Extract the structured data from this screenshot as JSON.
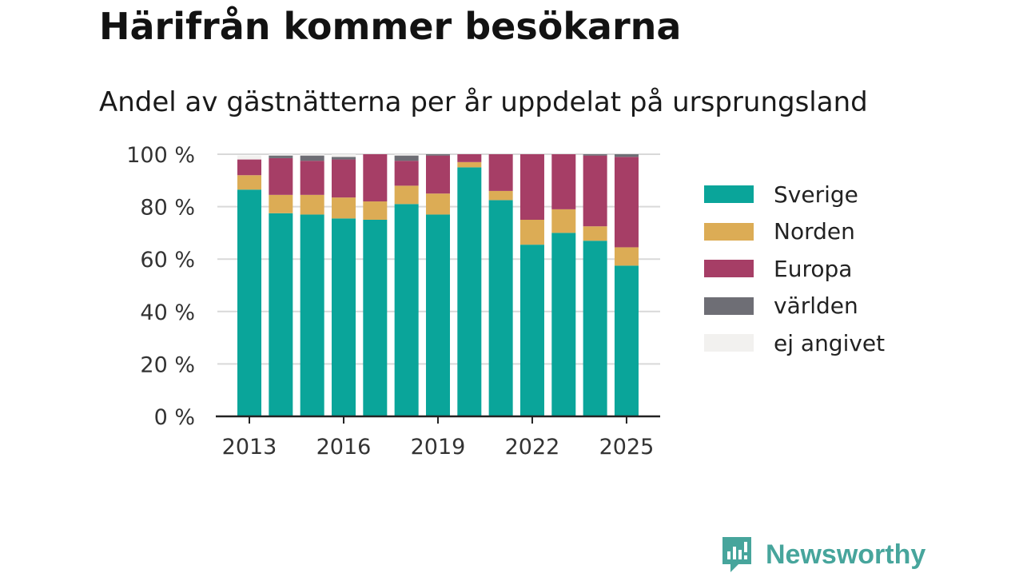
{
  "title": "Härifrån kommer besökarna",
  "subtitle": "Andel av gästnätterna per år uppdelat på ursprungsland",
  "brand": {
    "name": "Newsworthy",
    "logo_icon": "newsworthy-logo-icon"
  },
  "colors": {
    "Sverige": "#0aa59a",
    "Norden": "#dcac55",
    "Europa": "#a63e66",
    "världen": "#6e6e75",
    "ej angivet": "#f2f1ef",
    "grid": "#d9d9d9",
    "axis": "#222222"
  },
  "chart_data": {
    "type": "bar",
    "stacked": true,
    "title": "Härifrån kommer besökarna",
    "subtitle": "Andel av gästnätterna per år uppdelat på ursprungsland",
    "x": [
      2013,
      2014,
      2015,
      2016,
      2017,
      2018,
      2019,
      2020,
      2021,
      2022,
      2023,
      2024,
      2025
    ],
    "x_tick_labels": [
      "2013",
      "2016",
      "2019",
      "2022",
      "2025"
    ],
    "y_tick_labels": [
      "0 %",
      "20 %",
      "40 %",
      "60 %",
      "80 %",
      "100 %"
    ],
    "ylim": [
      0,
      100
    ],
    "grid": true,
    "legend_position": "right",
    "series": [
      {
        "name": "Sverige",
        "values": [
          86.5,
          77.5,
          77,
          75.5,
          75,
          81,
          77,
          95,
          82.5,
          65.5,
          70,
          67,
          57.5
        ]
      },
      {
        "name": "Norden",
        "values": [
          5.5,
          7,
          7.5,
          8,
          7,
          7,
          8,
          2,
          3.5,
          9.5,
          9,
          5.5,
          7
        ]
      },
      {
        "name": "Europa",
        "values": [
          6,
          14,
          13,
          14.5,
          18,
          9.5,
          14.5,
          3,
          14,
          25,
          21,
          27,
          34.5
        ]
      },
      {
        "name": "världen",
        "values": [
          0,
          1,
          2,
          1,
          0,
          2,
          0.5,
          0,
          0,
          0,
          0,
          0.5,
          1
        ]
      },
      {
        "name": "ej angivet",
        "values": [
          1.5,
          0.5,
          0.5,
          1,
          0,
          0.5,
          0,
          0,
          0,
          0,
          0,
          0,
          0
        ]
      }
    ]
  }
}
